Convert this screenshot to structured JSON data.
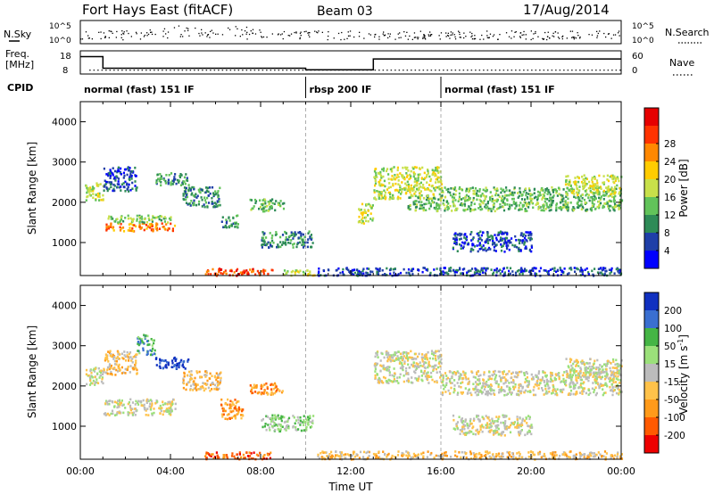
{
  "header": {
    "station": "Fort Hays East (fitACF)",
    "beam": "Beam 03",
    "date": "17/Aug/2014"
  },
  "chart_data": [
    {
      "panel": "noise",
      "type": "scatter",
      "left_label": "N.Sky",
      "right_label": "N.Search",
      "left_ticks": [
        "10^5",
        "10^0"
      ],
      "right_ticks": [
        "10^5",
        "10^0"
      ]
    },
    {
      "panel": "frequency",
      "type": "line",
      "left_label_lines": [
        "Freq.",
        "[MHz]"
      ],
      "left_ticks": [
        18,
        8
      ],
      "right_label": "Nave",
      "right_ticks": [
        60,
        0
      ],
      "freq_steps": [
        [
          0.0,
          15.5
        ],
        [
          1.0,
          15.5
        ],
        [
          1.0,
          10.5
        ],
        [
          10.0,
          10.5
        ],
        [
          10.0,
          9.8
        ],
        [
          13.0,
          9.8
        ],
        [
          13.0,
          14.5
        ],
        [
          24.0,
          14.5
        ]
      ],
      "nave_value": 10
    },
    {
      "panel": "cpid",
      "label": "CPID",
      "segments": [
        {
          "start": 0,
          "end": 10,
          "text": "normal (fast) 151 IF"
        },
        {
          "start": 10,
          "end": 16,
          "text": "rbsp 200 IF"
        },
        {
          "start": 16,
          "end": 24,
          "text": "normal (fast) 151 IF"
        }
      ]
    },
    {
      "panel": "power",
      "type": "heatmap",
      "ylabel": "Slant Range [km]",
      "ylim": [
        180,
        4500
      ],
      "yticks": [
        1000,
        2000,
        3000,
        4000
      ],
      "xlim": [
        0,
        24
      ],
      "colorbar": {
        "label": "Power [dB]",
        "ticks": [
          4,
          8,
          12,
          16,
          20,
          24,
          28
        ],
        "colors": [
          "#0000ff",
          "#1f3fa8",
          "#2e8b57",
          "#62c35a",
          "#c8e04a",
          "#ffcc00",
          "#ff8800",
          "#ff3300",
          "#e60000"
        ]
      },
      "echo_regions": [
        {
          "x": [
            0.2,
            1.0
          ],
          "y": [
            2050,
            2500
          ],
          "c": 4
        },
        {
          "x": [
            1.0,
            4.2
          ],
          "y": [
            1300,
            1500
          ],
          "c": 6
        },
        {
          "x": [
            1.2,
            4.0
          ],
          "y": [
            1520,
            1700
          ],
          "c": 3
        },
        {
          "x": [
            1.0,
            2.5
          ],
          "y": [
            2300,
            2900
          ],
          "c": 1
        },
        {
          "x": [
            3.3,
            4.8
          ],
          "y": [
            2450,
            2750
          ],
          "c": 2
        },
        {
          "x": [
            4.5,
            6.2
          ],
          "y": [
            1900,
            2400
          ],
          "c": 2
        },
        {
          "x": [
            5.5,
            8.5
          ],
          "y": [
            200,
            380
          ],
          "c": 7
        },
        {
          "x": [
            6.2,
            7.0
          ],
          "y": [
            1400,
            1700
          ],
          "c": 2
        },
        {
          "x": [
            7.5,
            9.0
          ],
          "y": [
            1800,
            2100
          ],
          "c": 3
        },
        {
          "x": [
            8.0,
            10.3
          ],
          "y": [
            900,
            1300
          ],
          "c": 2
        },
        {
          "x": [
            9.0,
            10.5
          ],
          "y": [
            200,
            350
          ],
          "c": 4
        },
        {
          "x": [
            12.3,
            13.0
          ],
          "y": [
            1500,
            2000
          ],
          "c": 4
        },
        {
          "x": [
            13.0,
            16.0
          ],
          "y": [
            2100,
            2900
          ],
          "c": 4
        },
        {
          "x": [
            14.5,
            16.0
          ],
          "y": [
            1800,
            2200
          ],
          "c": 3
        },
        {
          "x": [
            16.0,
            24.0
          ],
          "y": [
            1800,
            2400
          ],
          "c": 3
        },
        {
          "x": [
            21.5,
            24.0
          ],
          "y": [
            2200,
            2700
          ],
          "c": 4
        },
        {
          "x": [
            16.5,
            20.0
          ],
          "y": [
            800,
            1300
          ],
          "c": 1
        },
        {
          "x": [
            10.5,
            24.0
          ],
          "y": [
            200,
            400
          ],
          "c": 1
        }
      ]
    },
    {
      "panel": "velocity",
      "type": "heatmap",
      "ylabel": "Slant Range [km]",
      "xlabel": "Time UT",
      "ylim": [
        180,
        4500
      ],
      "yticks": [
        1000,
        2000,
        3000,
        4000
      ],
      "xlim": [
        0,
        24
      ],
      "xticks": [
        "00:00",
        "04:00",
        "08:00",
        "12:00",
        "16:00",
        "20:00",
        "00:00"
      ],
      "colorbar": {
        "label": "Velocity [m s",
        "label_sup": "-1",
        "label_end": "]",
        "ticks": [
          200,
          100,
          50,
          15,
          -15,
          -50,
          -100,
          -200
        ],
        "colors": [
          "#1030c0",
          "#3a6fd0",
          "#45b545",
          "#9be07a",
          "#bcbcbc",
          "#ffc24a",
          "#ff9a1a",
          "#ff5a00",
          "#ee0000"
        ]
      },
      "echo_regions": [
        {
          "x": [
            0.2,
            1.0
          ],
          "y": [
            2050,
            2500
          ],
          "c": 4
        },
        {
          "x": [
            1.0,
            4.2
          ],
          "y": [
            1300,
            1700
          ],
          "c": 4
        },
        {
          "x": [
            1.0,
            2.5
          ],
          "y": [
            2300,
            2900
          ],
          "c": 5
        },
        {
          "x": [
            2.5,
            3.3
          ],
          "y": [
            2800,
            3300
          ],
          "c": 2
        },
        {
          "x": [
            3.3,
            4.8
          ],
          "y": [
            2450,
            2750
          ],
          "c": 0
        },
        {
          "x": [
            4.5,
            6.2
          ],
          "y": [
            1900,
            2400
          ],
          "c": 5
        },
        {
          "x": [
            5.5,
            8.5
          ],
          "y": [
            200,
            380
          ],
          "c": 7
        },
        {
          "x": [
            6.2,
            7.2
          ],
          "y": [
            1200,
            1700
          ],
          "c": 6
        },
        {
          "x": [
            7.5,
            9.0
          ],
          "y": [
            1800,
            2100
          ],
          "c": 6
        },
        {
          "x": [
            8.0,
            10.3
          ],
          "y": [
            900,
            1300
          ],
          "c": 3
        },
        {
          "x": [
            13.0,
            16.0
          ],
          "y": [
            2100,
            2900
          ],
          "c": 4
        },
        {
          "x": [
            16.0,
            24.0
          ],
          "y": [
            1800,
            2400
          ],
          "c": 4
        },
        {
          "x": [
            21.5,
            24.0
          ],
          "y": [
            2200,
            2700
          ],
          "c": 4
        },
        {
          "x": [
            16.5,
            20.0
          ],
          "y": [
            800,
            1300
          ],
          "c": 4
        },
        {
          "x": [
            10.5,
            24.0
          ],
          "y": [
            200,
            400
          ],
          "c": 5
        }
      ]
    }
  ]
}
